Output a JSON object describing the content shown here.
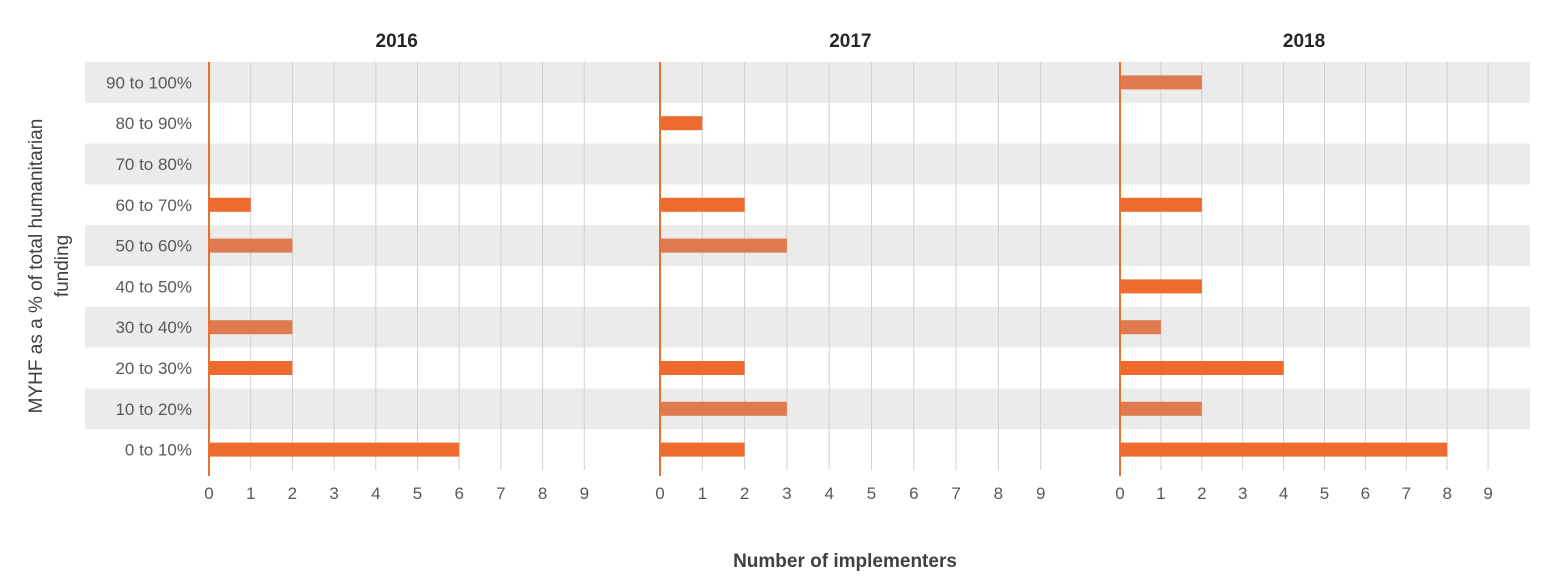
{
  "chart_data": {
    "type": "bar",
    "orientation": "horizontal",
    "layout": "small-multiples",
    "ylabel_lines": [
      "MYHF as a % of total humanitarian",
      "funding"
    ],
    "xlabel": "Number of implementers",
    "categories": [
      "90 to 100%",
      "80 to 90%",
      "70 to 80%",
      "60 to 70%",
      "50 to 60%",
      "40 to 50%",
      "30 to 40%",
      "20 to 30%",
      "10 to 20%",
      "0 to 10%"
    ],
    "xlim": [
      0,
      9
    ],
    "xticks": [
      "0",
      "1",
      "2",
      "3",
      "4",
      "5",
      "6",
      "7",
      "8",
      "9"
    ],
    "grid": "vertical",
    "band_rows": "alternating",
    "colors": {
      "bar_primary": "#EE6A2E",
      "bar_muted": "#E07A4F",
      "axis_line": "#E8712F",
      "grid": "#D0D0D0",
      "band": "#EBEBEB"
    },
    "panels": [
      {
        "title": "2016",
        "values": [
          0,
          0,
          0,
          1,
          2,
          0,
          2,
          2,
          0,
          6
        ]
      },
      {
        "title": "2017",
        "values": [
          0,
          1,
          0,
          2,
          3,
          0,
          0,
          2,
          3,
          2
        ]
      },
      {
        "title": "2018",
        "values": [
          2,
          0,
          0,
          2,
          0,
          2,
          1,
          4,
          2,
          8
        ]
      }
    ]
  }
}
